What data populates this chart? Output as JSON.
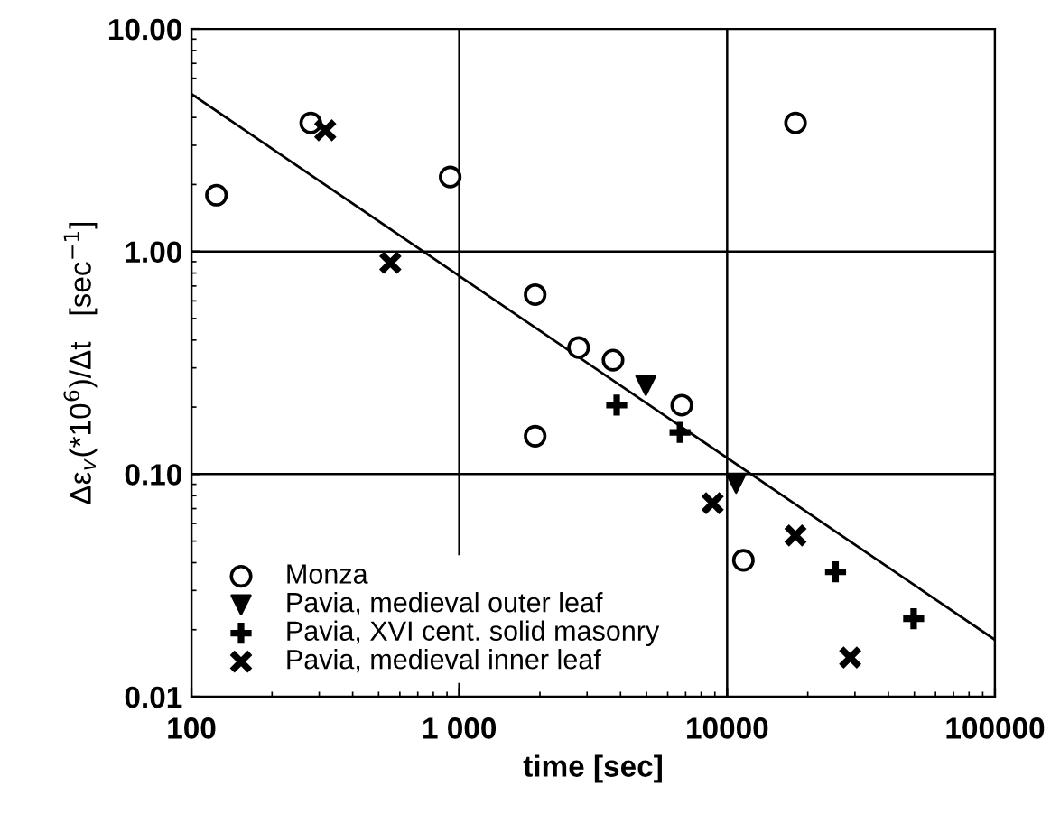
{
  "chart_data": {
    "type": "scatter",
    "xlabel": "time [sec]",
    "ylabel": "Δε$_{v}$(*10$^{6}$)/Δt   [sec$^{−1}$]",
    "log": "xy",
    "grid": true,
    "legend": "bottom left",
    "xlim": [
      100,
      100000
    ],
    "xticks": [
      100,
      {
        "value": 1000,
        "label": "1 000"
      },
      10000,
      100000
    ],
    "ylim": [
      0.01,
      10
    ],
    "yticks": [
      {
        "value": 0.01,
        "label": "0.01"
      },
      {
        "value": 0.1,
        "label": "0.10"
      },
      {
        "value": 1,
        "label": "1.00"
      },
      {
        "value": 10,
        "label": "10.00"
      }
    ],
    "series": [
      {
        "name": "Monza",
        "color": "#000000",
        "marker": "circle",
        "x": [
          124,
          279,
          925,
          18000,
          1920,
          2790,
          3750,
          6770,
          1920,
          11500
        ],
        "values": [
          1.79,
          3.78,
          2.16,
          3.78,
          0.64,
          0.37,
          0.325,
          0.204,
          0.148,
          0.041
        ]
      },
      {
        "name": "Pavia, medieval outer leaf",
        "color": "#000000",
        "marker": "triangle",
        "x": [
          4970,
          10800
        ],
        "values": [
          0.25,
          0.091
        ]
      },
      {
        "name": "Pavia, XVI cent. solid masonry",
        "color": "#000000",
        "marker": "cross",
        "x": [
          3870,
          6670,
          25400,
          49700
        ],
        "values": [
          0.204,
          0.154,
          0.0364,
          0.0224
        ]
      },
      {
        "name": "Pavia, medieval inner leaf",
        "color": "#000000",
        "marker": "x",
        "x": [
          316,
          553,
          8830,
          18000,
          28800
        ],
        "values": [
          3.5,
          0.89,
          0.074,
          0.053,
          0.015
        ]
      },
      {
        "type": "line",
        "color": "#000000",
        "marker": "none",
        "line_style": "solid",
        "x": [
          100,
          100000
        ],
        "values": [
          5.1,
          0.018
        ]
      }
    ]
  }
}
